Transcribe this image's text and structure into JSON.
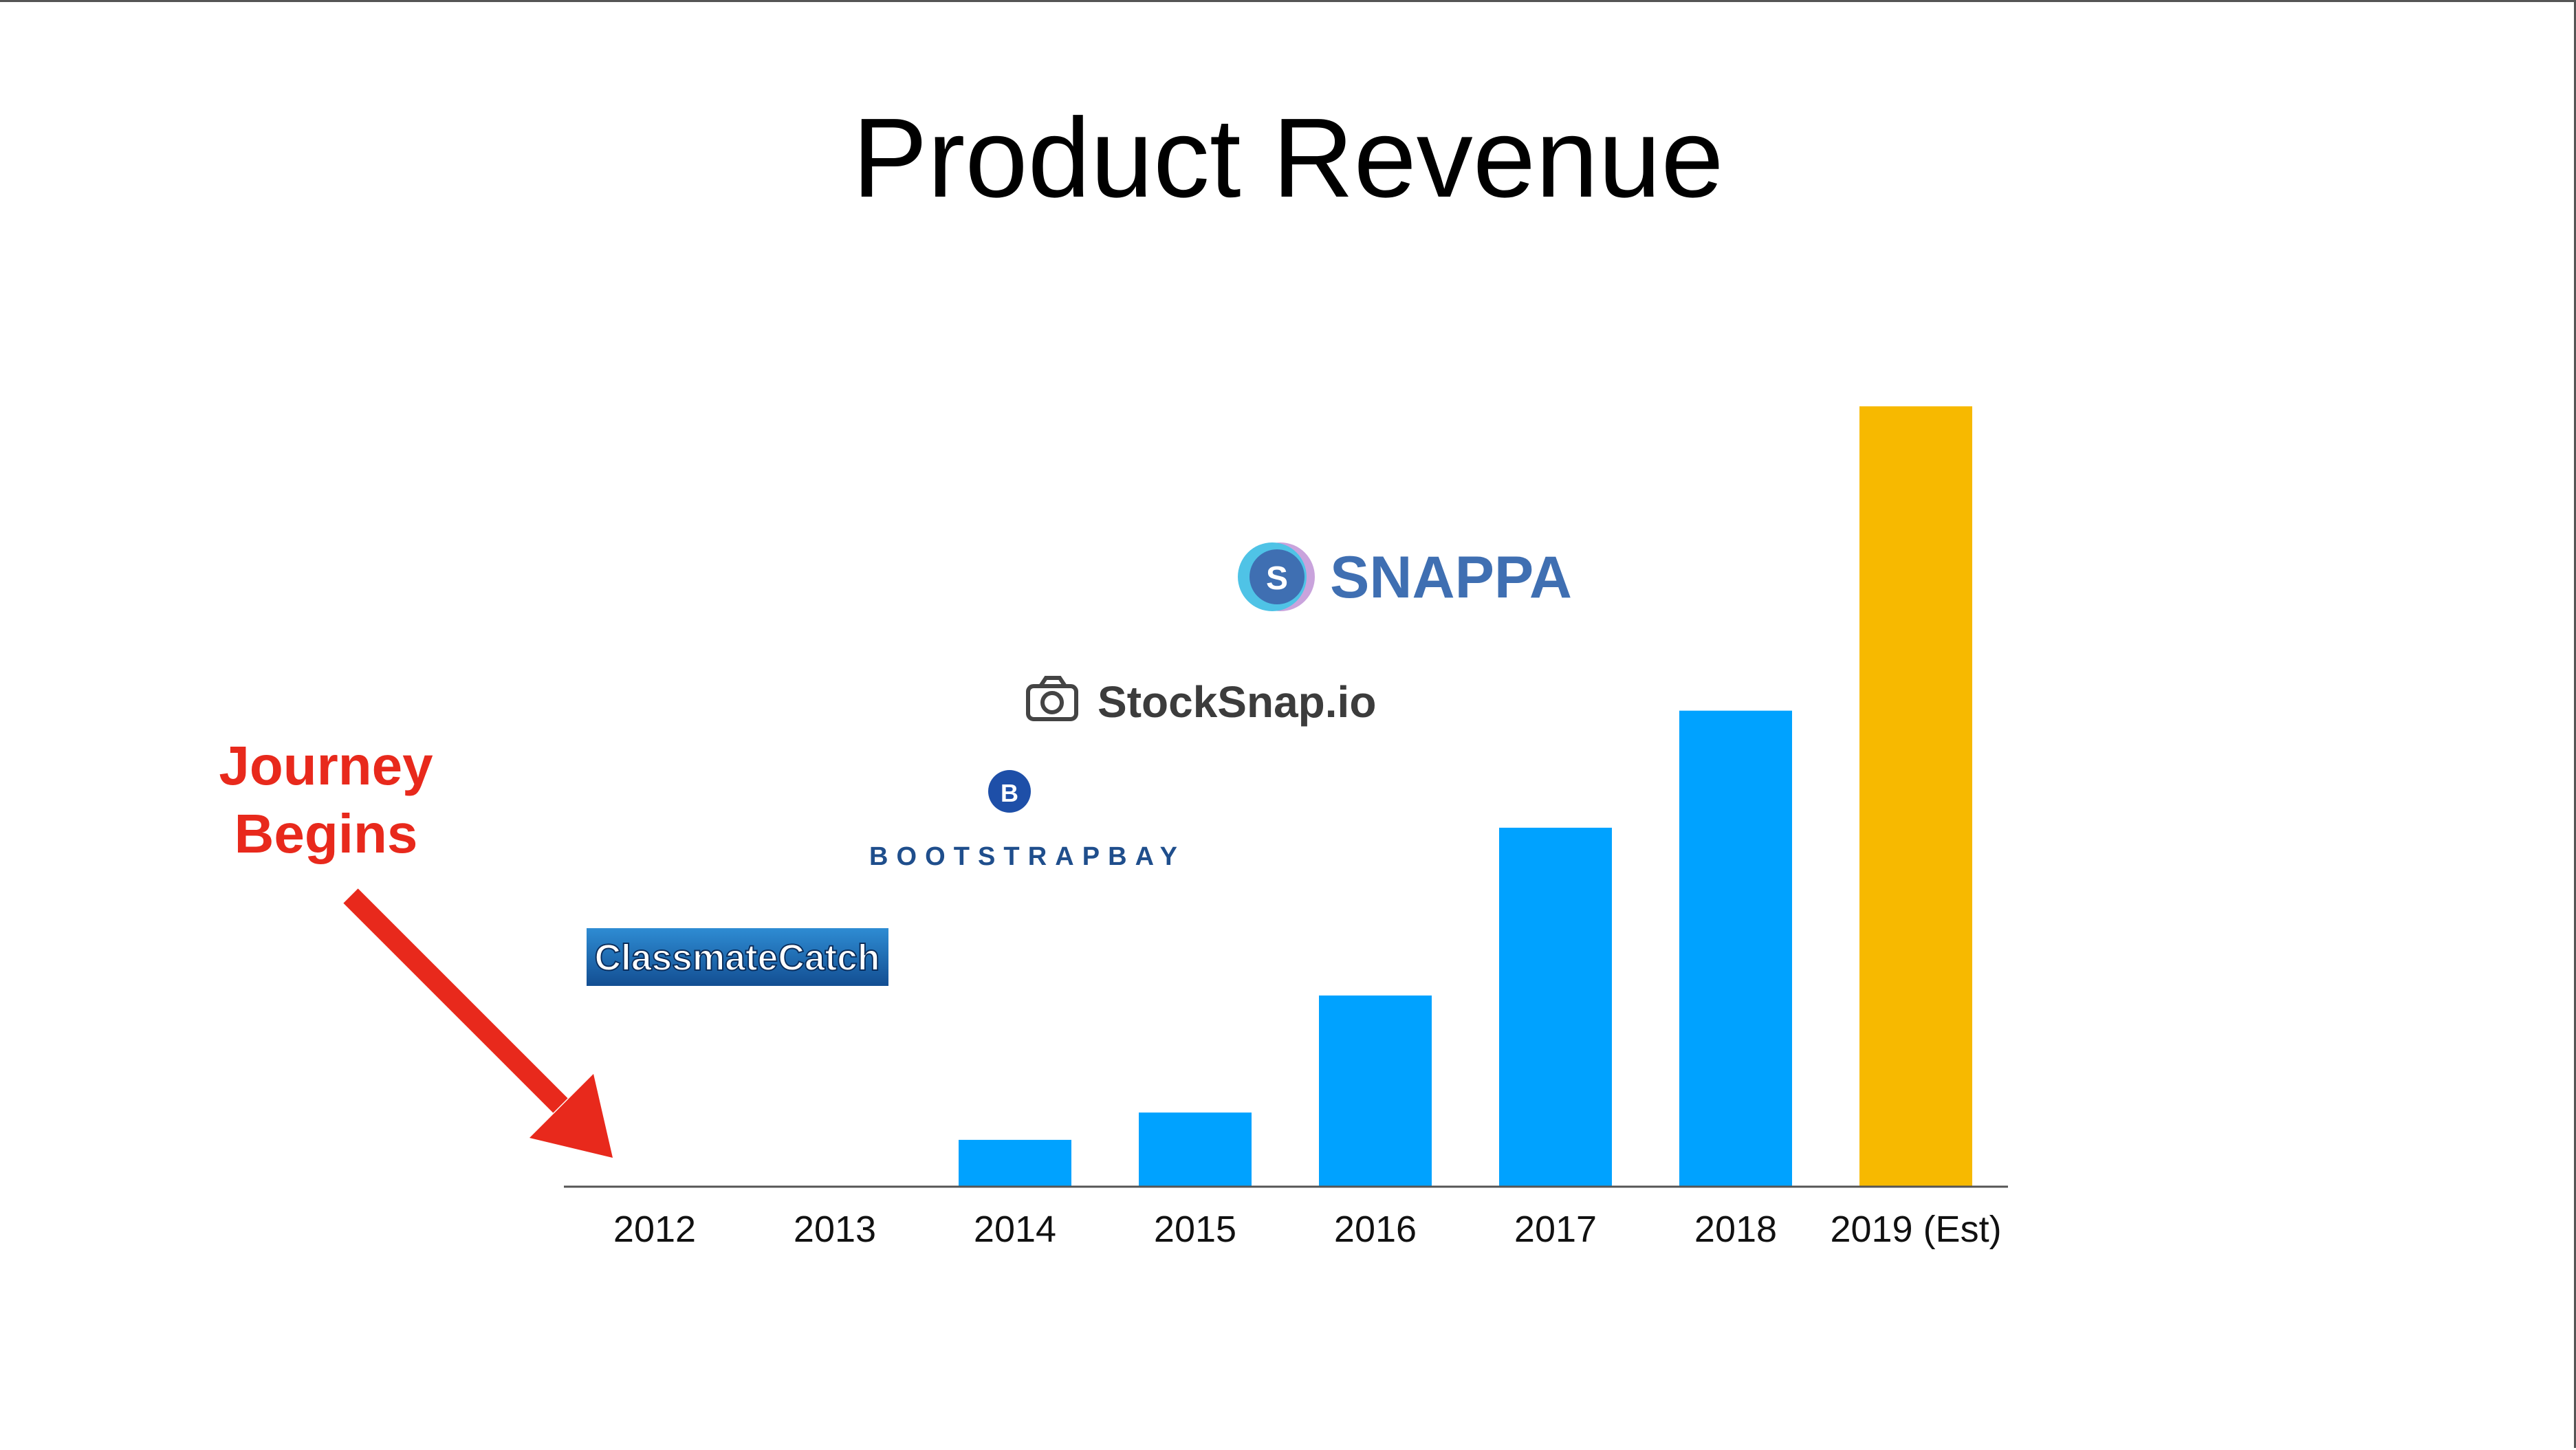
{
  "slide": {
    "title": "Product Revenue",
    "annotation": {
      "line1": "Journey",
      "line2": "Begins",
      "color": "#E8291C"
    }
  },
  "logos": {
    "classmatecatch": {
      "text": "ClassmateCatch"
    },
    "bootstrapbay": {
      "text": "BOOTSTRAPBAY",
      "icon_letter": "B"
    },
    "stocksnap": {
      "text": "StockSnap.io"
    },
    "snappa": {
      "text": "SNAPPA",
      "icon_letter": "S"
    }
  },
  "colors": {
    "actual": "#00A2FF",
    "estimate": "#F7B900",
    "axis": "#555555"
  },
  "chart_data": {
    "type": "bar",
    "title": "Product Revenue",
    "xlabel": "",
    "ylabel": "",
    "categories": [
      "2012",
      "2013",
      "2014",
      "2015",
      "2016",
      "2017",
      "2018",
      "2019 (Est)"
    ],
    "values": [
      0,
      0,
      6,
      9.5,
      24.5,
      46,
      61,
      100
    ],
    "value_scale": "relative, tallest bar = 100 (no y-axis printed)",
    "ylim": [
      0,
      100
    ],
    "estimated_category": "2019 (Est)",
    "grid": false,
    "legend": "none"
  }
}
